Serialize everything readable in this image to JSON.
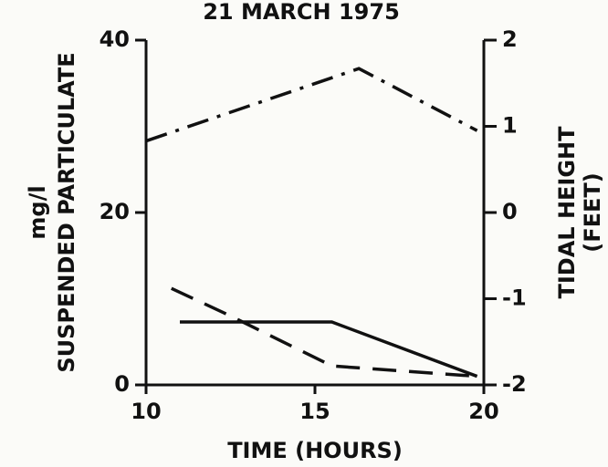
{
  "chart_data": {
    "type": "line",
    "title": "21  MARCH  1975",
    "xlabel": "TIME (HOURS)",
    "ylabel": [
      "mg/l",
      "SUSPENDED PARTICULATE"
    ],
    "y2label": [
      "TIDAL HEIGHT",
      "(FEET)"
    ],
    "xlim": [
      10,
      20
    ],
    "xticks": [
      10,
      15,
      20
    ],
    "ylim": [
      0,
      40
    ],
    "yticks": [
      0,
      20,
      40
    ],
    "y2lim": [
      -2,
      2
    ],
    "y2ticks": [
      -2,
      -1,
      0,
      1,
      2
    ],
    "series": [
      {
        "color": "#111111",
        "dash": "dashdot",
        "axis": "y2",
        "x": [
          10,
          16.3,
          19.8
        ],
        "values": [
          0.83,
          1.67,
          0.95
        ]
      },
      {
        "color": "#111111",
        "dash": "solid",
        "x": [
          11,
          15.5,
          19.8
        ],
        "values": [
          7.3,
          7.3,
          1.0
        ]
      },
      {
        "color": "#111111",
        "dash": "dashed",
        "x": [
          10.75,
          12.5,
          15.5,
          19.8
        ],
        "values": [
          11.2,
          8.0,
          2.2,
          1.0
        ]
      }
    ]
  }
}
